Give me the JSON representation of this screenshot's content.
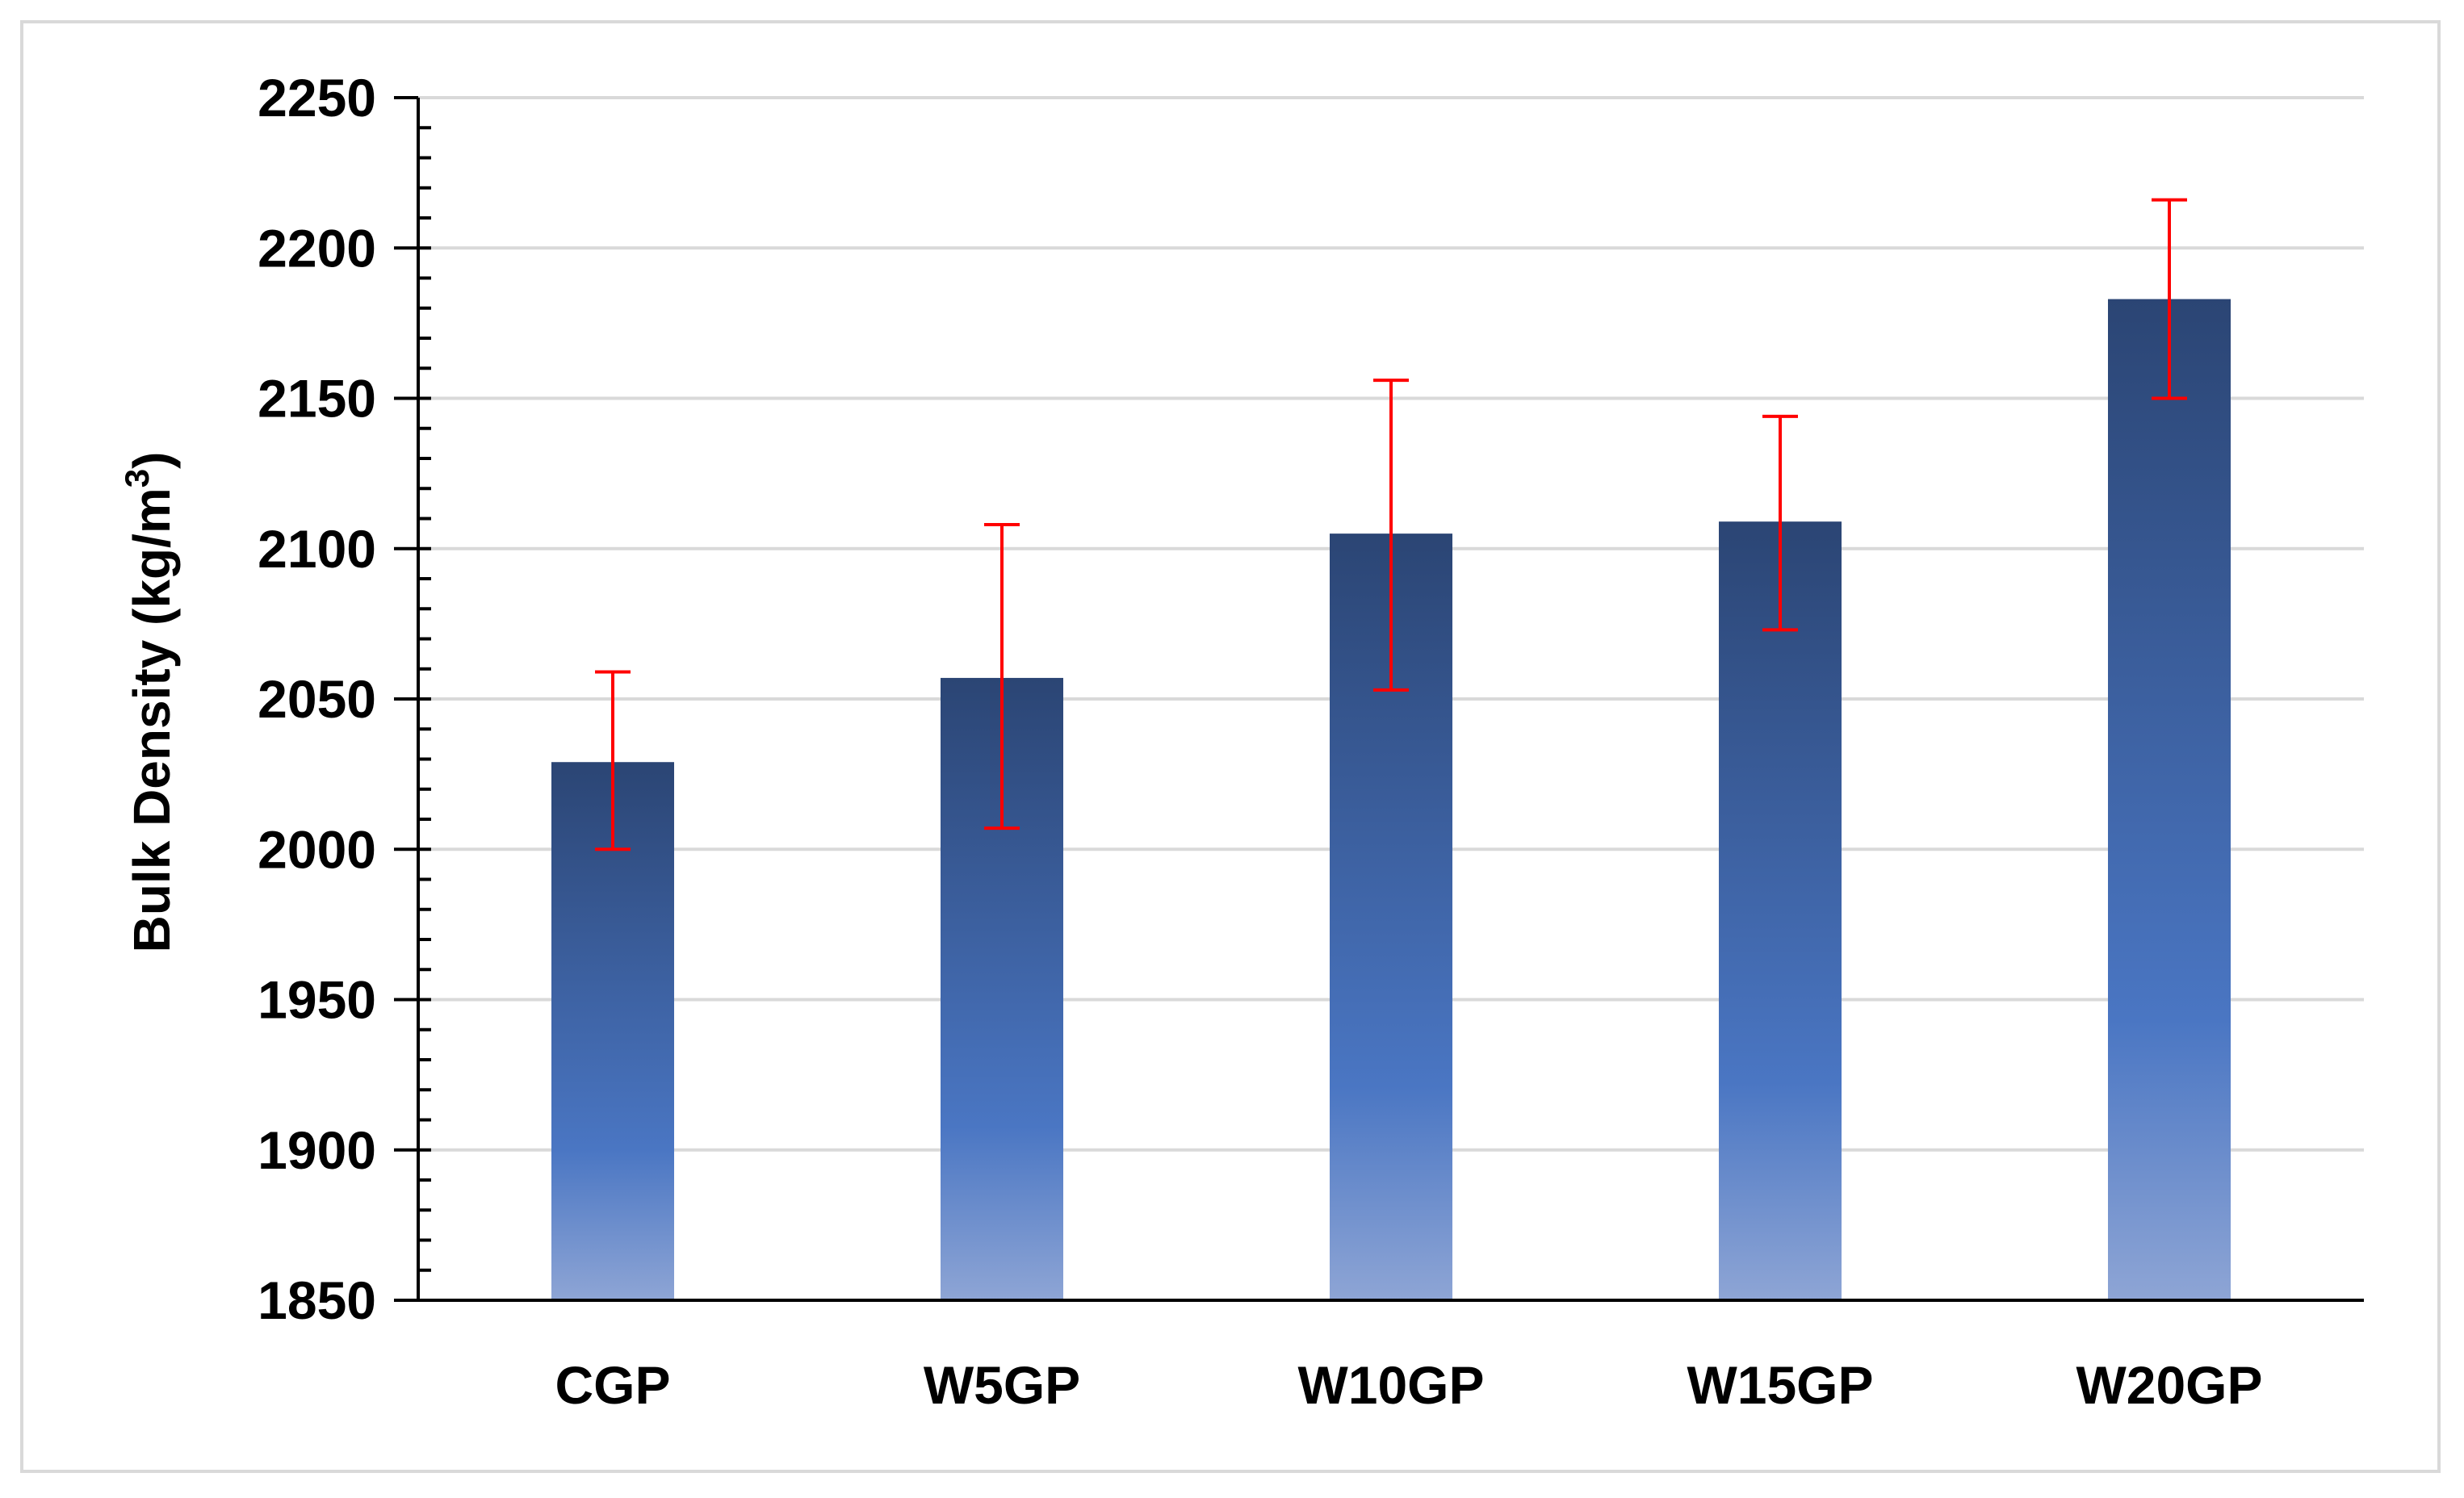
{
  "chart_data": {
    "type": "bar",
    "title": "",
    "xlabel": "",
    "ylabel": "Bulk Density (kg/m",
    "ylabel_superscript": "3",
    "ylabel_suffix": ")",
    "categories": [
      "CGP",
      "W5GP",
      "W10GP",
      "W15GP",
      "W20GP"
    ],
    "values": [
      2029,
      2057,
      2105,
      2109,
      2183
    ],
    "error_low": [
      2000,
      2007,
      2053,
      2073,
      2150
    ],
    "error_high": [
      2059,
      2108,
      2156,
      2144,
      2216
    ],
    "ylim": [
      1850,
      2250
    ],
    "ytick_step": 50,
    "ytick_labels": [
      "1850",
      "1900",
      "1950",
      "2000",
      "2050",
      "2100",
      "2150",
      "2200",
      "2250"
    ],
    "grid": true,
    "legend": "none",
    "colors": {
      "bar_top": "#2b4574",
      "bar_mid": "#4a76c3",
      "bar_bottom": "#8ea5d5",
      "error_bar": "#ff0000",
      "grid": "#d9d9d9",
      "axis": "#000000",
      "frame": "#d9d9d9"
    }
  }
}
